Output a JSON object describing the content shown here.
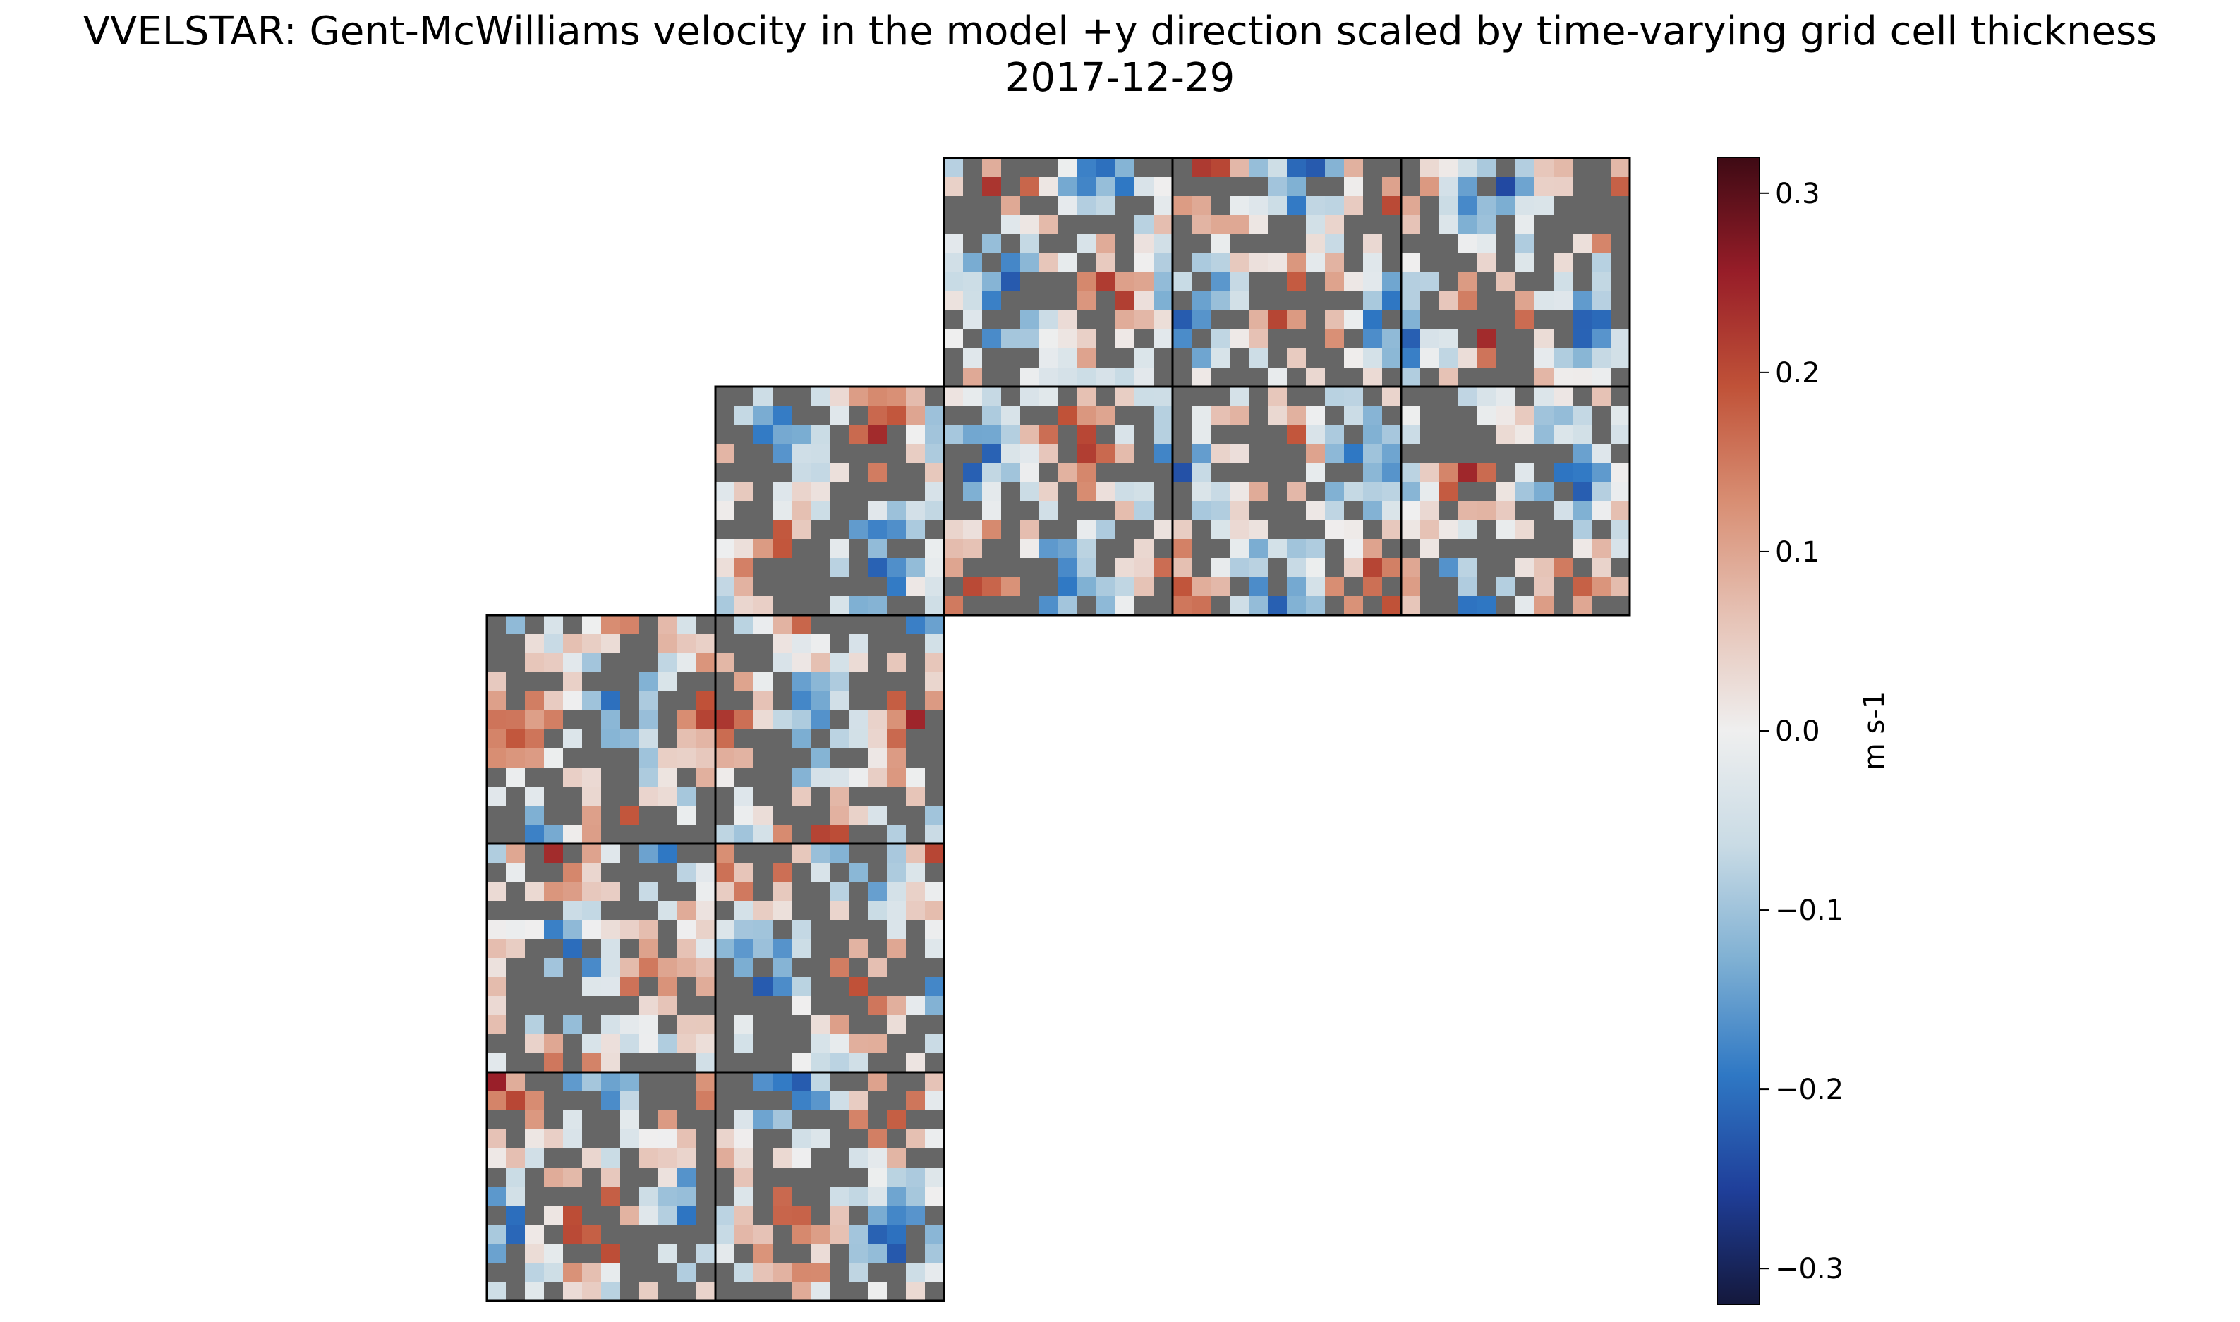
{
  "chart_data": {
    "type": "heatmap",
    "title": "VVELSTAR: Gent-McWilliams velocity in the model +y direction scaled by time-varying grid cell thickness",
    "subtitle": "2017-12-29",
    "colorbar": {
      "label": "m s-1",
      "vmin": -0.32,
      "vmax": 0.32,
      "ticks": [
        0.3,
        0.2,
        0.1,
        0.0,
        -0.1,
        -0.2,
        -0.3
      ],
      "tick_labels": [
        "0.3",
        "0.2",
        "0.1",
        "0.0",
        "−0.1",
        "−0.2",
        "−0.3"
      ],
      "colormap": [
        "#14183c",
        "#1f3f9a",
        "#2f78c4",
        "#7fb0d3",
        "#c9dbe5",
        "#efefef",
        "#e6c2b5",
        "#d88e73",
        "#c05238",
        "#971d28",
        "#3e0a14"
      ]
    },
    "tiles": [
      {
        "name": "tile-a",
        "row": 0,
        "col": 2
      },
      {
        "name": "tile-b",
        "row": 0,
        "col": 3
      },
      {
        "name": "tile-c",
        "row": 0,
        "col": 4
      },
      {
        "name": "tile-d",
        "row": 1,
        "col": 1
      },
      {
        "name": "tile-e",
        "row": 1,
        "col": 2
      },
      {
        "name": "tile-f",
        "row": 1,
        "col": 3
      },
      {
        "name": "tile-g",
        "row": 1,
        "col": 4
      },
      {
        "name": "tile-h",
        "row": 2,
        "col": 0
      },
      {
        "name": "tile-i",
        "row": 2,
        "col": 1
      },
      {
        "name": "tile-j",
        "row": 3,
        "col": 0
      },
      {
        "name": "tile-k",
        "row": 3,
        "col": 1
      },
      {
        "name": "tile-l",
        "row": 4,
        "col": 0
      },
      {
        "name": "tile-m",
        "row": 4,
        "col": 1
      }
    ],
    "colors": {
      "land": "#666666",
      "tile_border": "#000000"
    }
  }
}
